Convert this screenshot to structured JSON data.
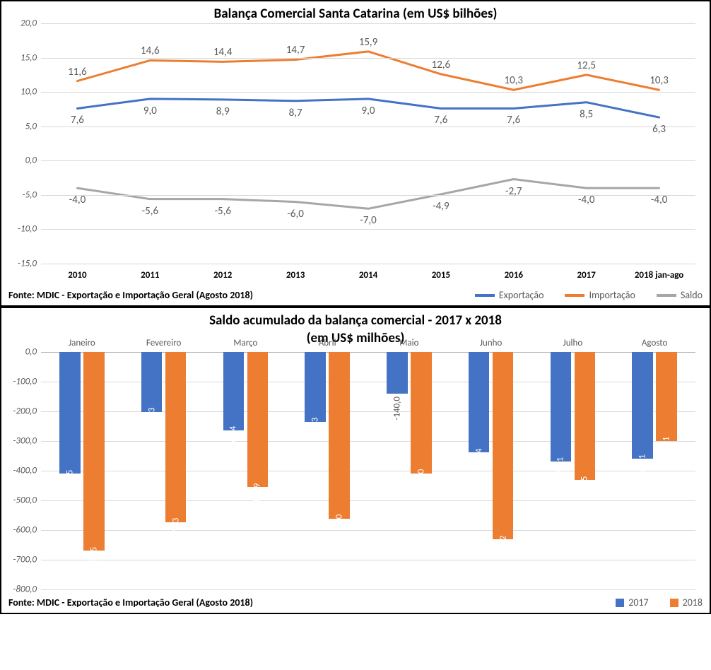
{
  "chart1": {
    "type": "line",
    "title": "Balança Comercial Santa Catarina (em US$ bilhões)",
    "source": "Fonte: MDIC - Exportação e Importação Geral (Agosto 2018)",
    "categories": [
      "2010",
      "2011",
      "2012",
      "2013",
      "2014",
      "2015",
      "2016",
      "2017",
      "2018 jan-ago"
    ],
    "ylim": [
      -15,
      20
    ],
    "ytick_step": 5,
    "grid_color": "#d9d9d9",
    "background": "#ffffff",
    "line_width": 3,
    "label_fontsize": 15,
    "series": [
      {
        "name": "Exportação",
        "color": "#4472c4",
        "values": [
          7.6,
          9.0,
          8.9,
          8.7,
          9.0,
          7.6,
          7.6,
          8.5,
          6.3
        ],
        "label_pos": "below"
      },
      {
        "name": "Importação",
        "color": "#ed7d31",
        "values": [
          11.6,
          14.6,
          14.4,
          14.7,
          15.9,
          12.6,
          10.3,
          12.5,
          10.3
        ],
        "label_pos": "above"
      },
      {
        "name": "Saldo",
        "color": "#a6a6a6",
        "values": [
          -4.0,
          -5.6,
          -5.6,
          -6.0,
          -7.0,
          -4.9,
          -2.7,
          -4.0,
          -4.0
        ],
        "label_pos": "below"
      }
    ]
  },
  "chart2": {
    "type": "bar",
    "title": "Saldo acumulado da balança comercial - 2017 x 2018",
    "subtitle": "(em US$ milhões)",
    "source": "Fonte: MDIC - Exportação e Importação Geral (Agosto 2018)",
    "categories": [
      "Janeiro",
      "Fevereiro",
      "Março",
      "Abril",
      "Maio",
      "Junho",
      "Julho",
      "Agosto"
    ],
    "ylim": [
      -800,
      0
    ],
    "ytick_step": 100,
    "grid_color": "#d9d9d9",
    "background": "#ffffff",
    "bar_gap": 0.04,
    "group_width": 0.55,
    "label_fontsize": 13,
    "series": [
      {
        "name": "2017",
        "color": "#4472c4",
        "values": [
          -410.5,
          -201.3,
          -264.4,
          -235.3,
          -140.0,
          -338.4,
          -368.1,
          -359.1
        ]
      },
      {
        "name": "2018",
        "color": "#ed7d31",
        "values": [
          -669.5,
          -573.3,
          -455.9,
          -561.0,
          -409.0,
          -631.2,
          -431.5,
          -299.1
        ]
      }
    ]
  }
}
